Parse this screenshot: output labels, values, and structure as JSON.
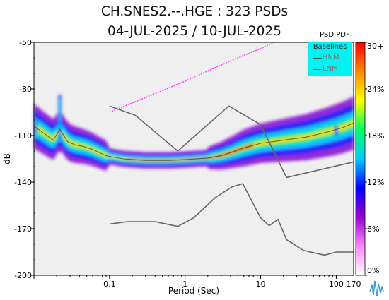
{
  "chart_data": {
    "type": "heatmap",
    "title": "CH.SNES2.--.HGE : 323 PSDs",
    "subtitle": "04-JUL-2025 / 10-JUL-2025",
    "xlabel": "Period (Sec)",
    "ylabel": "dB",
    "x_scale": "log",
    "xlim": [
      0.01,
      170
    ],
    "ylim": [
      -200,
      -50
    ],
    "x_ticks": [
      {
        "value": 0.1,
        "label": "0.1"
      },
      {
        "value": 1,
        "label": "1"
      },
      {
        "value": 10,
        "label": "10"
      },
      {
        "value": 100,
        "label": "100"
      },
      {
        "value": 170,
        "label": "170"
      }
    ],
    "y_ticks": [
      {
        "value": -50,
        "label": "-50"
      },
      {
        "value": -80,
        "label": "-80"
      },
      {
        "value": -110,
        "label": "-110"
      },
      {
        "value": -140,
        "label": "-140"
      },
      {
        "value": -170,
        "label": "-170"
      },
      {
        "value": -200,
        "label": "-200"
      }
    ],
    "colorbar": {
      "title": "PSD PDF",
      "ticks": [
        "30+",
        "24%",
        "18%",
        "12%",
        "6%",
        "0%"
      ],
      "range": [
        0,
        30
      ],
      "colors": [
        "#ffffff",
        "#ff88ff",
        "#9900cc",
        "#0000ff",
        "#00ccff",
        "#00ff66",
        "#ffff00",
        "#ff8800",
        "#ff0000"
      ]
    },
    "legend": {
      "title": "Baselines",
      "entries": [
        "HNM",
        "LNM"
      ],
      "position": "top-right"
    },
    "baselines": [
      {
        "name": "HNM",
        "x": [
          0.1,
          0.22,
          0.8,
          3.8,
          10,
          22,
          170
        ],
        "y": [
          -91,
          -97,
          -120,
          -91,
          -103,
          -137,
          -127
        ]
      },
      {
        "name": "LNM",
        "x": [
          0.1,
          0.17,
          0.4,
          0.8,
          1.3,
          2.5,
          4.2,
          5.8,
          10,
          13,
          17,
          22,
          37,
          70,
          100,
          170
        ],
        "y": [
          -167,
          -165.5,
          -165.5,
          -168.5,
          -163,
          -150,
          -143,
          -141,
          -163,
          -168,
          -164,
          -177,
          -184,
          -187,
          -185,
          -185
        ]
      },
      {
        "name": "",
        "color": "#ff44ff",
        "x": [
          0.1,
          0.3,
          1,
          3,
          10,
          30,
          50
        ],
        "y": [
          -95,
          -85.5,
          -75,
          -64.5,
          -54,
          -43.5,
          -39
        ]
      }
    ],
    "mode_curve": {
      "x": [
        0.01,
        0.014,
        0.018,
        0.022,
        0.028,
        0.035,
        0.045,
        0.06,
        0.09,
        0.15,
        0.3,
        0.6,
        1,
        2,
        3,
        4,
        6,
        10,
        20,
        40,
        80,
        120,
        170
      ],
      "y": [
        -104,
        -109,
        -113,
        -106,
        -114,
        -116,
        -117,
        -119,
        -123,
        -125,
        -126,
        -126,
        -125.5,
        -124.5,
        -123,
        -121,
        -118,
        -115,
        -113,
        -111,
        -107.5,
        -105,
        -102
      ]
    },
    "spikes": [
      {
        "x": 0.022,
        "y_top": -84,
        "y_bottom": -112
      },
      {
        "x": 0.0105,
        "y_top": -97,
        "y_bottom": -108
      },
      {
        "x": 100,
        "y_top": -104,
        "y_bottom": -110
      }
    ]
  }
}
